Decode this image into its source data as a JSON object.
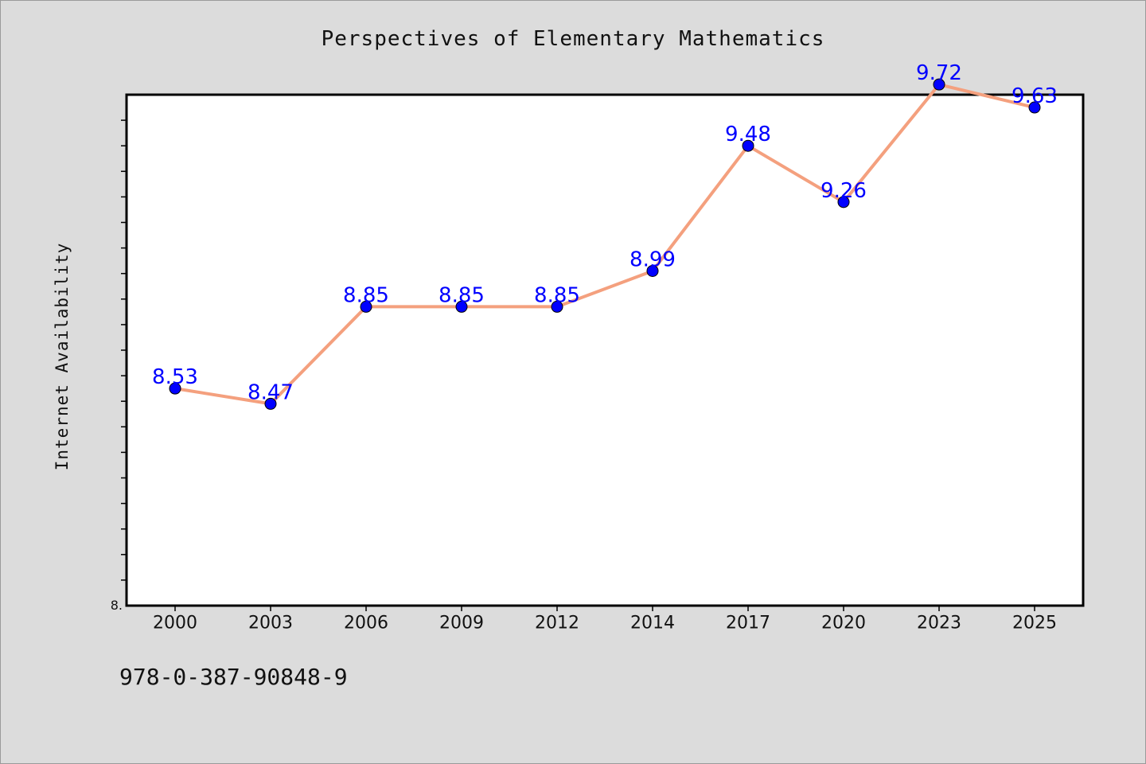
{
  "chart_data": {
    "type": "line",
    "title": "Perspectives of Elementary Mathematics",
    "xlabel": "",
    "ylabel": "Internet Availability",
    "categories": [
      "2000",
      "2003",
      "2006",
      "2009",
      "2012",
      "2014",
      "2017",
      "2020",
      "2023",
      "2025"
    ],
    "values": [
      8.53,
      8.47,
      8.85,
      8.85,
      8.85,
      8.99,
      9.48,
      9.26,
      9.72,
      9.63
    ],
    "data_labels": [
      "8.53",
      "8.47",
      "8.85",
      "8.85",
      "8.85",
      "8.99",
      "9.48",
      "9.26",
      "9.72",
      "9.63"
    ],
    "ylim": [
      7.68,
      9.68
    ],
    "y_min_label": "8.",
    "grid": false,
    "line_color": "#f4a07e",
    "marker_color": "#0000ff",
    "label_color": "#0000ff"
  },
  "footer_note": "978-0-387-90848-9"
}
